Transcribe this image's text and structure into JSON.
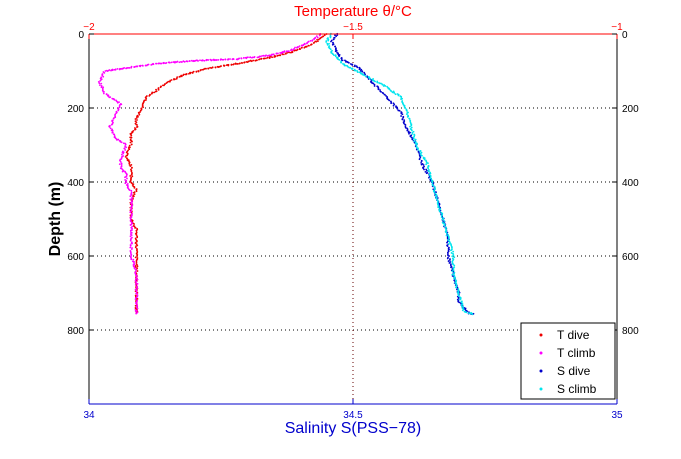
{
  "chart_data": {
    "type": "scatter",
    "title_top": "Temperature θ/°C",
    "xlabel_bottom": "Salinity S(PSS−78)",
    "ylabel": "Depth (m)",
    "colors": {
      "top_axis": "#ff0000",
      "bottom_axis": "#0000cc",
      "grid_top": "#ff0000",
      "grid_bottom": "#000000",
      "t_dive": "#ee0000",
      "t_climb": "#ff00ff",
      "s_dive": "#0000cc",
      "s_climb": "#00e5ee"
    },
    "top_axis": {
      "lim": [
        -2,
        -1
      ],
      "ticks": [
        -2,
        -1.5,
        -1
      ],
      "tick_labels": [
        "−2",
        "−1.5",
        "−1"
      ]
    },
    "bottom_axis": {
      "lim": [
        34,
        35
      ],
      "ticks": [
        34,
        34.5,
        35
      ],
      "tick_labels": [
        "34",
        "34.5",
        "35"
      ]
    },
    "y_axis": {
      "lim": [
        0,
        1000
      ],
      "reversed": true,
      "ticks": [
        0,
        200,
        400,
        600,
        800
      ],
      "tick_labels": [
        "0",
        "200",
        "400",
        "600",
        "800"
      ]
    },
    "grid": {
      "top_x": [
        -1.5
      ],
      "bottom_x": [
        34.5
      ],
      "y": [
        200,
        400,
        600,
        800
      ]
    },
    "legend": {
      "position": "bottom-right",
      "entries": [
        "T dive",
        "T climb",
        "S dive",
        "S climb"
      ]
    },
    "series": [
      {
        "name": "T dive",
        "axis": "top",
        "x": [
          -1.55,
          -1.56,
          -1.58,
          -1.62,
          -1.66,
          -1.7,
          -1.74,
          -1.78,
          -1.82,
          -1.85,
          -1.87,
          -1.89,
          -1.9,
          -1.91,
          -1.91,
          -1.92,
          -1.92,
          -1.93,
          -1.92,
          -1.92,
          -1.91,
          -1.92,
          -1.92,
          -1.92,
          -1.91,
          -1.91,
          -1.91,
          -1.91,
          -1.91,
          -1.91,
          -1.91,
          -1.91
        ],
        "y": [
          0,
          10,
          30,
          50,
          65,
          75,
          85,
          95,
          110,
          130,
          150,
          170,
          200,
          230,
          250,
          270,
          300,
          330,
          360,
          400,
          420,
          450,
          470,
          500,
          530,
          560,
          600,
          640,
          680,
          720,
          740,
          755
        ]
      },
      {
        "name": "T climb",
        "axis": "top",
        "x": [
          -1.56,
          -1.58,
          -1.62,
          -1.66,
          -1.72,
          -1.8,
          -1.87,
          -1.92,
          -1.97,
          -1.98,
          -1.97,
          -1.94,
          -1.95,
          -1.96,
          -1.95,
          -1.93,
          -1.94,
          -1.94,
          -1.93,
          -1.93,
          -1.92,
          -1.92,
          -1.92,
          -1.92,
          -1.92,
          -1.91,
          -1.91,
          -1.91,
          -1.91,
          -1.91
        ],
        "y": [
          0,
          20,
          45,
          58,
          68,
          72,
          80,
          90,
          100,
          130,
          160,
          190,
          220,
          250,
          280,
          300,
          340,
          360,
          380,
          400,
          430,
          460,
          500,
          550,
          600,
          650,
          700,
          740,
          750,
          758
        ]
      },
      {
        "name": "S dive",
        "axis": "bottom",
        "x": [
          34.47,
          34.46,
          34.47,
          34.48,
          34.51,
          34.53,
          34.55,
          34.57,
          34.59,
          34.6,
          34.62,
          34.63,
          34.65,
          34.66,
          34.67,
          34.68,
          34.68,
          34.69,
          34.7,
          34.7,
          34.71,
          34.72,
          34.73
        ],
        "y": [
          0,
          20,
          50,
          70,
          90,
          120,
          150,
          180,
          210,
          250,
          300,
          350,
          400,
          450,
          500,
          550,
          600,
          650,
          700,
          720,
          740,
          755,
          758
        ]
      },
      {
        "name": "S climb",
        "axis": "bottom",
        "x": [
          34.46,
          34.45,
          34.46,
          34.48,
          34.52,
          34.56,
          34.59,
          34.6,
          34.61,
          34.62,
          34.64,
          34.65,
          34.66,
          34.67,
          34.68,
          34.69,
          34.69,
          34.7,
          34.71,
          34.73
        ],
        "y": [
          0,
          20,
          50,
          80,
          110,
          140,
          170,
          200,
          250,
          300,
          350,
          400,
          450,
          500,
          550,
          600,
          650,
          700,
          750,
          758
        ]
      }
    ]
  }
}
